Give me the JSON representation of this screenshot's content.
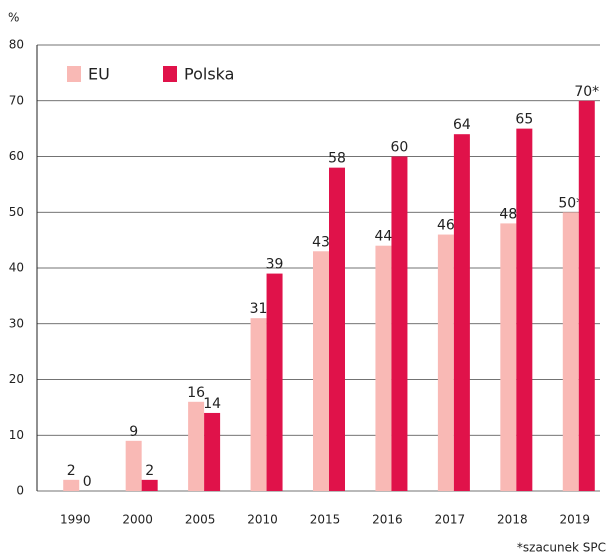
{
  "chart_data": {
    "type": "bar",
    "y_label": "%",
    "footnote": "*szacunek SPC",
    "categories": [
      "1990",
      "2000",
      "2005",
      "2010",
      "2015",
      "2016",
      "2017",
      "2018",
      "2019"
    ],
    "series": [
      {
        "name": "EU",
        "color": "#f9b9b5",
        "values": [
          2,
          9,
          16,
          31,
          43,
          44,
          46,
          48,
          50
        ],
        "value_labels": [
          "2",
          "9",
          "16",
          "31",
          "43",
          "44",
          "46",
          "48",
          "50*"
        ]
      },
      {
        "name": "Polska",
        "color": "#e0124a",
        "values": [
          0,
          2,
          14,
          39,
          58,
          60,
          64,
          65,
          70
        ],
        "value_labels": [
          "0",
          "2",
          "14",
          "39",
          "58",
          "60",
          "64",
          "65",
          "70*"
        ]
      }
    ],
    "ylim": [
      0,
      80
    ],
    "yticks": [
      0,
      10,
      20,
      30,
      40,
      50,
      60,
      70,
      80
    ],
    "grid": true,
    "legend": "top-left"
  }
}
